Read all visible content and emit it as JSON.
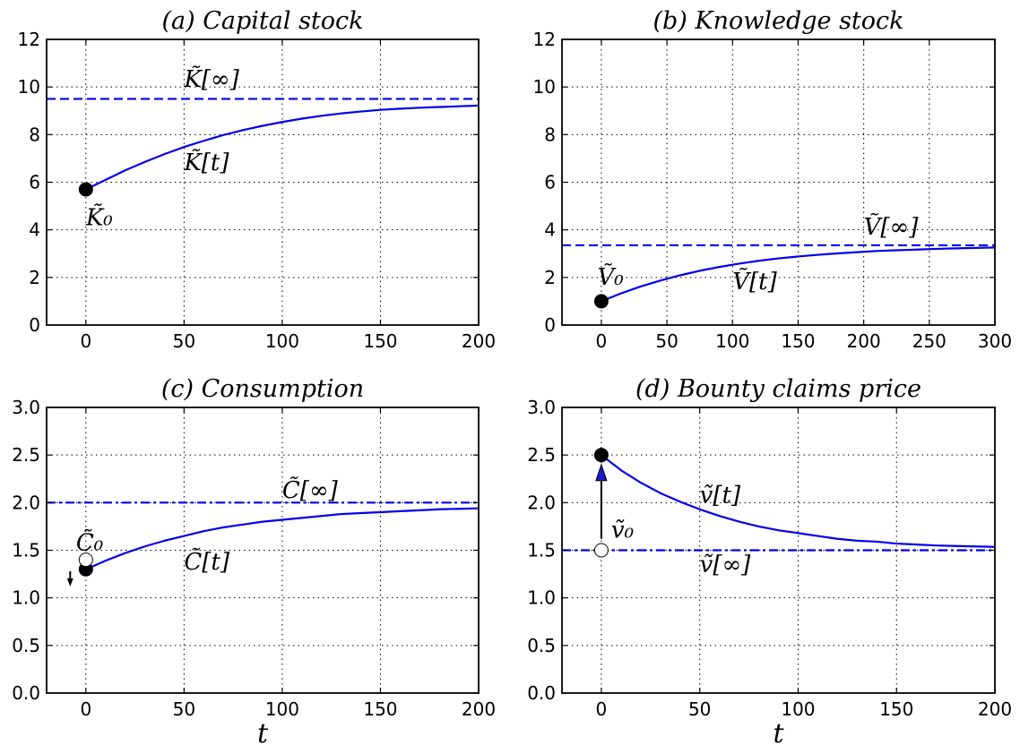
{
  "chart_data": [
    {
      "type": "line",
      "title": "(a) Capital stock",
      "xlabel": "",
      "ylabel": "",
      "xlim": [
        -20,
        200
      ],
      "ylim": [
        0,
        12
      ],
      "xticks": [
        0,
        50,
        100,
        150,
        200
      ],
      "yticks": [
        0,
        2,
        4,
        6,
        8,
        10,
        12
      ],
      "grid": true,
      "curve": {
        "x": [
          0,
          10,
          20,
          30,
          40,
          50,
          60,
          70,
          80,
          90,
          100,
          110,
          120,
          130,
          140,
          150,
          160,
          170,
          180,
          190,
          200
        ],
        "y": [
          5.7,
          6.1,
          6.5,
          6.85,
          7.18,
          7.48,
          7.74,
          7.98,
          8.19,
          8.37,
          8.53,
          8.67,
          8.79,
          8.89,
          8.97,
          9.04,
          9.09,
          9.13,
          9.16,
          9.19,
          9.22
        ]
      },
      "hlines": [
        {
          "y": 9.5,
          "style": "dashed"
        }
      ],
      "points": [
        {
          "x": 0,
          "y": 5.7,
          "fill": "filled"
        }
      ],
      "annotations": [
        {
          "text": "K̃[∞]",
          "x": 50,
          "y": 10.0
        },
        {
          "text": "K̃[t]",
          "x": 50,
          "y": 6.5
        },
        {
          "text": "K̃₀",
          "x": 0,
          "y": 4.2
        }
      ]
    },
    {
      "type": "line",
      "title": "(b) Knowledge stock",
      "xlabel": "",
      "ylabel": "",
      "xlim": [
        -30,
        300
      ],
      "ylim": [
        0,
        12
      ],
      "xticks": [
        0,
        50,
        100,
        150,
        200,
        250,
        300
      ],
      "yticks": [
        0,
        2,
        4,
        6,
        8,
        10,
        12
      ],
      "grid": true,
      "curve": {
        "x": [
          0,
          15,
          30,
          45,
          60,
          75,
          90,
          105,
          120,
          135,
          150,
          165,
          180,
          195,
          210,
          225,
          240,
          255,
          270,
          285,
          300
        ],
        "y": [
          1.0,
          1.33,
          1.62,
          1.87,
          2.09,
          2.28,
          2.44,
          2.58,
          2.7,
          2.8,
          2.88,
          2.95,
          3.01,
          3.06,
          3.11,
          3.14,
          3.17,
          3.2,
          3.22,
          3.24,
          3.26
        ]
      },
      "hlines": [
        {
          "y": 3.35,
          "style": "dashed"
        }
      ],
      "points": [
        {
          "x": 0,
          "y": 1.0,
          "fill": "filled"
        }
      ],
      "annotations": [
        {
          "text": "Ṽ[∞]",
          "x": 200,
          "y": 3.8
        },
        {
          "text": "Ṽ[t]",
          "x": 100,
          "y": 1.5
        },
        {
          "text": "Ṽ₀",
          "x": -3,
          "y": 1.7
        }
      ]
    },
    {
      "type": "line",
      "title": "(c) Consumption",
      "xlabel": "t",
      "ylabel": "",
      "xlim": [
        -20,
        200
      ],
      "ylim": [
        0,
        3
      ],
      "xticks": [
        0,
        50,
        100,
        150,
        200
      ],
      "yticks": [
        0.0,
        0.5,
        1.0,
        1.5,
        2.0,
        2.5,
        3.0
      ],
      "grid": true,
      "curve": {
        "x": [
          0,
          10,
          20,
          30,
          40,
          50,
          60,
          70,
          80,
          90,
          100,
          110,
          120,
          130,
          140,
          150,
          160,
          170,
          180,
          190,
          200
        ],
        "y": [
          1.3,
          1.39,
          1.47,
          1.54,
          1.6,
          1.65,
          1.7,
          1.74,
          1.77,
          1.8,
          1.82,
          1.84,
          1.86,
          1.88,
          1.89,
          1.9,
          1.91,
          1.92,
          1.93,
          1.935,
          1.94
        ]
      },
      "hlines": [
        {
          "y": 2.0,
          "style": "dashdot"
        }
      ],
      "points": [
        {
          "x": 0,
          "y": 1.3,
          "fill": "filled"
        },
        {
          "x": 0,
          "y": 1.4,
          "fill": "open"
        }
      ],
      "arrows": [
        {
          "x": -8,
          "y_from": 1.28,
          "y_to": 1.12,
          "style": "thin"
        }
      ],
      "annotations": [
        {
          "text": "C̃[∞]",
          "x": 100,
          "y": 2.05
        },
        {
          "text": "C̃[t]",
          "x": 50,
          "y": 1.3
        },
        {
          "text": "C̃₀",
          "x": -5,
          "y": 1.5
        }
      ]
    },
    {
      "type": "line",
      "title": "(d) Bounty claims price",
      "xlabel": "t",
      "ylabel": "",
      "xlim": [
        -20,
        200
      ],
      "ylim": [
        0,
        3
      ],
      "xticks": [
        0,
        50,
        100,
        150,
        200
      ],
      "yticks": [
        0.0,
        0.5,
        1.0,
        1.5,
        2.0,
        2.5,
        3.0
      ],
      "grid": true,
      "curve": {
        "x": [
          0,
          10,
          20,
          30,
          40,
          50,
          60,
          70,
          80,
          90,
          100,
          110,
          120,
          130,
          140,
          150,
          160,
          170,
          180,
          190,
          200
        ],
        "y": [
          2.5,
          2.34,
          2.21,
          2.1,
          2.01,
          1.93,
          1.86,
          1.8,
          1.75,
          1.71,
          1.68,
          1.65,
          1.62,
          1.6,
          1.59,
          1.57,
          1.56,
          1.55,
          1.545,
          1.54,
          1.535
        ]
      },
      "hlines": [
        {
          "y": 1.5,
          "style": "dashdot"
        }
      ],
      "points": [
        {
          "x": 0,
          "y": 2.5,
          "fill": "filled"
        },
        {
          "x": 0,
          "y": 1.5,
          "fill": "open"
        }
      ],
      "arrows": [
        {
          "x": 0,
          "y_from": 1.62,
          "y_to": 2.4,
          "style": "filled"
        }
      ],
      "annotations": [
        {
          "text": "ṽ[t]",
          "x": 50,
          "y": 2.0
        },
        {
          "text": "ṽ₀",
          "x": 5,
          "y": 1.63
        },
        {
          "text": "ṽ[∞]",
          "x": 50,
          "y": 1.27
        }
      ]
    }
  ],
  "colors": {
    "line": "#0000ee",
    "axis": "#000000",
    "grid": "#000000",
    "arrow_fill": "#1a1acc"
  }
}
